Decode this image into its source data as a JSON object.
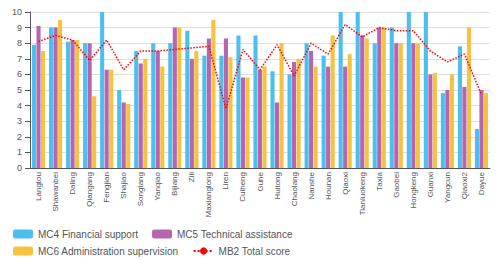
{
  "chart_data": {
    "type": "bar",
    "categories": [
      "Langtou",
      "Shawanbei",
      "Daling",
      "Qiangang",
      "Fengjian",
      "Shajiao",
      "Songtang",
      "Yanqiao",
      "Bijiang",
      "Zili",
      "Maxianglong",
      "Liren",
      "Cuiheng",
      "Guhe",
      "Huitong",
      "Chaolang",
      "Nanshe",
      "Hounan",
      "Qiaoxi",
      "Tianluokeng",
      "Taxia",
      "Gaobei",
      "Hongkeng",
      "Guanxi",
      "Yangcun",
      "Qiaoxi2",
      "Dayue"
    ],
    "series": [
      {
        "name": "MC4 Financial support",
        "type": "bar",
        "color": "#4DBFEF",
        "values": [
          7.9,
          9.0,
          8.1,
          8.0,
          10.0,
          5.0,
          7.5,
          8.0,
          8.0,
          8.8,
          7.2,
          7.2,
          8.5,
          8.5,
          6.2,
          6.0,
          8.0,
          7.2,
          10.0,
          10.0,
          8.0,
          9.0,
          10.0,
          10.0,
          4.8,
          7.8,
          2.5
        ]
      },
      {
        "name": "MC5 Technical assistance",
        "type": "bar",
        "color": "#B566B0",
        "values": [
          9.1,
          9.0,
          8.2,
          8.0,
          6.3,
          4.2,
          6.7,
          7.5,
          9.0,
          7.0,
          8.3,
          8.3,
          5.8,
          6.3,
          4.2,
          6.8,
          7.5,
          6.5,
          6.5,
          8.5,
          9.0,
          8.0,
          8.0,
          6.0,
          5.0,
          5.2,
          5.0
        ]
      },
      {
        "name": "MC6 Administration supervision",
        "type": "bar",
        "color": "#F5C242",
        "values": [
          7.5,
          9.5,
          8.2,
          4.6,
          6.3,
          4.1,
          7.0,
          6.5,
          9.0,
          7.5,
          9.5,
          7.1,
          5.8,
          6.5,
          8.0,
          7.0,
          6.5,
          8.5,
          7.3,
          8.3,
          9.0,
          8.0,
          8.0,
          6.1,
          6.0,
          9.0,
          4.8
        ]
      },
      {
        "name": "MB2 Total score",
        "type": "line",
        "line_style": "dotted",
        "color": "#FF0000",
        "values": [
          8.1,
          8.5,
          8.2,
          6.9,
          8.2,
          6.3,
          7.5,
          7.5,
          7.6,
          7.7,
          7.8,
          3.8,
          7.6,
          6.3,
          7.9,
          5.9,
          8.0,
          7.3,
          9.2,
          8.4,
          9.0,
          8.8,
          8.8,
          7.5,
          6.8,
          7.3,
          4.7
        ]
      }
    ],
    "ylim": [
      0,
      10
    ],
    "yticks": [
      0,
      1,
      2,
      3,
      4,
      5,
      6,
      7,
      8,
      9,
      10
    ],
    "grid": true,
    "legend": "lower left"
  }
}
